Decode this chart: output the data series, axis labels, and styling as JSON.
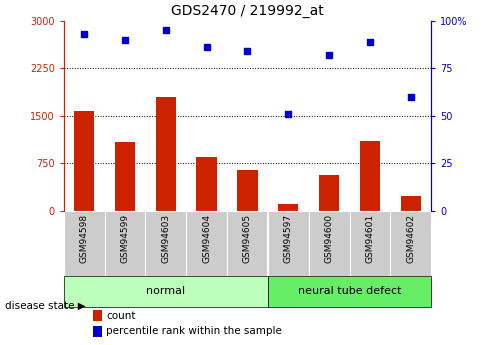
{
  "title": "GDS2470 / 219992_at",
  "categories": [
    "GSM94598",
    "GSM94599",
    "GSM94603",
    "GSM94604",
    "GSM94605",
    "GSM94597",
    "GSM94600",
    "GSM94601",
    "GSM94602"
  ],
  "counts": [
    1570,
    1080,
    1800,
    850,
    650,
    110,
    560,
    1100,
    230
  ],
  "percentiles": [
    93,
    90,
    95,
    86,
    84,
    51,
    82,
    89,
    60
  ],
  "bar_color": "#cc2200",
  "dot_color": "#0000cc",
  "ylim_left": [
    0,
    3000
  ],
  "ylim_right": [
    0,
    100
  ],
  "yticks_left": [
    0,
    750,
    1500,
    2250,
    3000
  ],
  "ytick_labels_left": [
    "0",
    "750",
    "1500",
    "2250",
    "3000"
  ],
  "yticks_right": [
    0,
    25,
    50,
    75,
    100
  ],
  "ytick_labels_right": [
    "0",
    "25",
    "50",
    "75",
    "100%"
  ],
  "group_normal": [
    "GSM94598",
    "GSM94599",
    "GSM94603",
    "GSM94604",
    "GSM94605"
  ],
  "group_neural": [
    "GSM94597",
    "GSM94600",
    "GSM94601",
    "GSM94602"
  ],
  "group_normal_label": "normal",
  "group_neural_label": "neural tube defect",
  "disease_state_label": "disease state",
  "legend_count_label": "count",
  "legend_pct_label": "percentile rank within the sample",
  "normal_group_color": "#bbffbb",
  "neural_group_color": "#66ee66",
  "tick_label_bg": "#cccccc",
  "title_fontsize": 10,
  "tick_fontsize": 7,
  "bar_width": 0.5,
  "fig_bg": "#ffffff"
}
